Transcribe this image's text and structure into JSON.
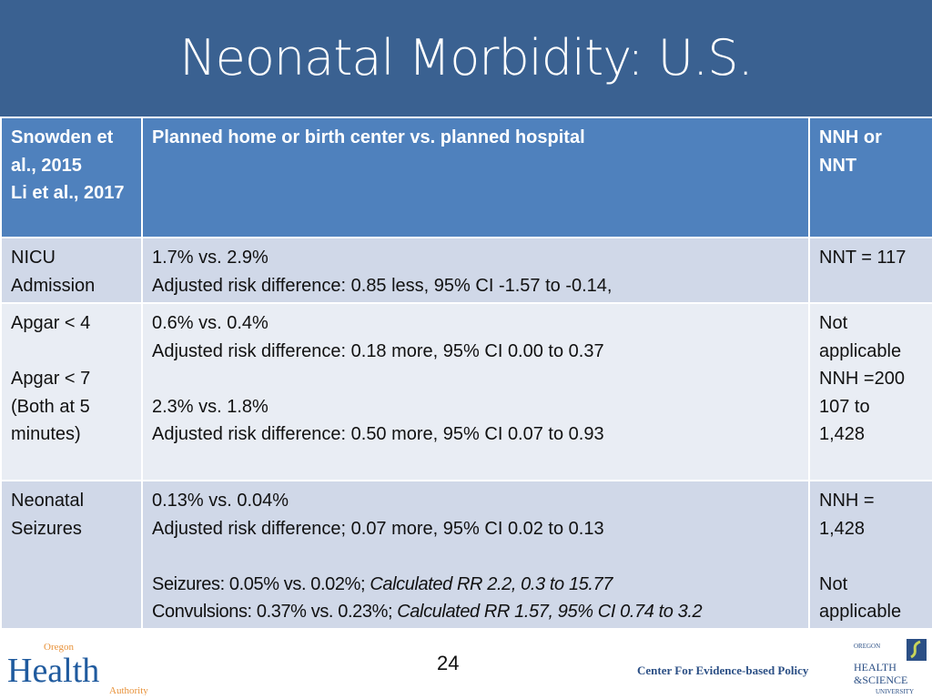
{
  "title": "Neonatal Morbidity: U.S.",
  "table": {
    "header": [
      "Snowden et al., 2015",
      "Li et al., 2017",
      "Planned home or birth center vs. planned hospital",
      "NNH or NNT"
    ],
    "rows": [
      {
        "outcome": [
          "NICU",
          "Admission"
        ],
        "result": [
          "1.7% vs. 2.9%",
          "Adjusted risk difference: 0.85 less, 95% CI -1.57 to -0.14,"
        ],
        "nn": [
          "NNT = 117"
        ]
      },
      {
        "outcome": [
          "Apgar < 4",
          "",
          "Apgar < 7",
          "(Both at 5",
          "minutes)"
        ],
        "result": [
          "0.6% vs. 0.4%",
          "Adjusted risk difference: 0.18 more, 95% CI 0.00 to 0.37",
          "",
          "2.3% vs. 1.8%",
          "Adjusted risk difference: 0.50 more, 95% CI 0.07 to 0.93"
        ],
        "nn": [
          "Not",
          "applicable",
          "NNH =200",
          "107 to",
          "1,428"
        ]
      },
      {
        "outcome": [
          "Neonatal",
          "Seizures"
        ],
        "result": [
          "0.13% vs. 0.04%",
          "Adjusted risk difference; 0.07 more, 95% CI 0.02 to 0.13",
          ""
        ],
        "seizures": {
          "label": "Seizures: 0.05% vs. 0.02%; ",
          "italic": "Calculated RR 2.2, 0.3 to 15.77"
        },
        "convulsions": {
          "label": "Convulsions: 0.37% vs. 0.23%; ",
          "italic": "Calculated RR 1.57, 95% CI 0.74 to 3.2"
        },
        "nn": [
          "NNH =",
          "1,428",
          "",
          "Not",
          "applicable"
        ]
      }
    ]
  },
  "footer": {
    "page": "24",
    "center": "Center For Evidence-based Policy",
    "logo_left": "Oregon Health Authority",
    "logo_right": "Oregon Health & Science University"
  },
  "colors": {
    "title_bg": "#3a6191",
    "header_bg": "#4f81bd",
    "row_dark": "#d0d8e8",
    "row_light": "#e9edf4"
  }
}
